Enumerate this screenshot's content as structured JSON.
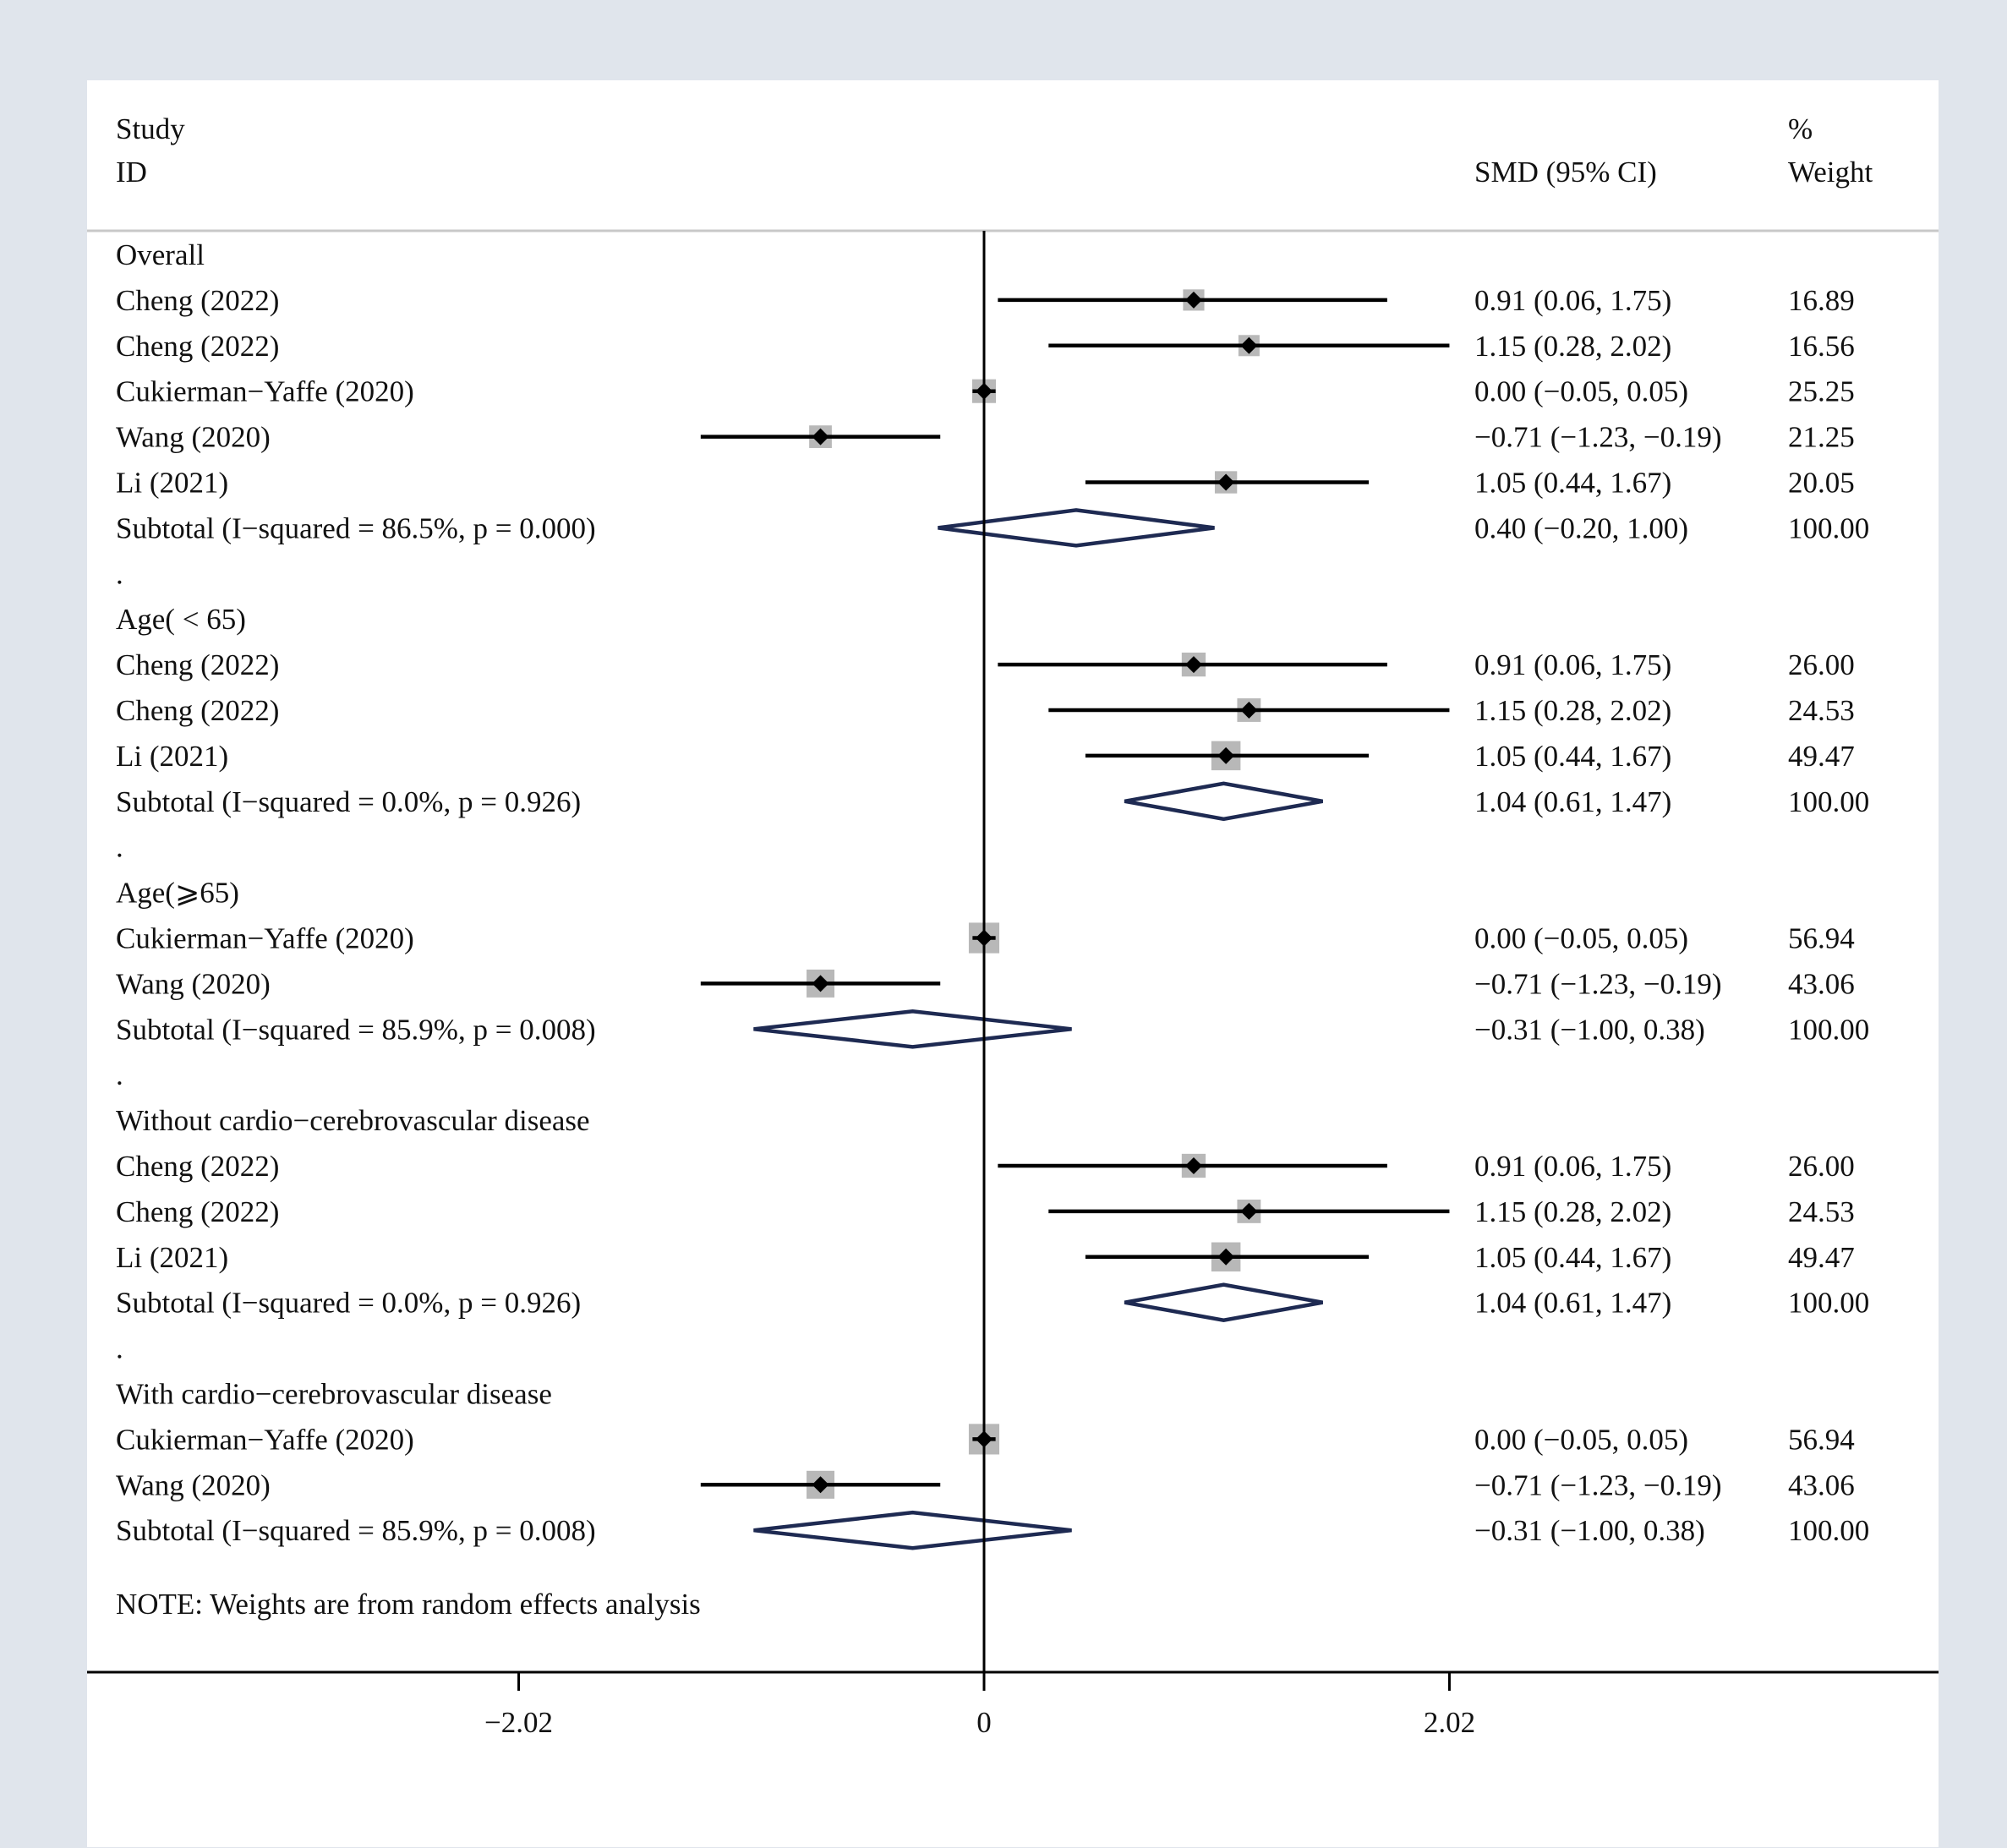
{
  "chart_data": {
    "type": "forest",
    "headers": {
      "study_line1": "Study",
      "study_line2": "ID",
      "effect": "SMD (95% CI)",
      "weight_line1": "%",
      "weight_line2": "Weight"
    },
    "x_ticks": [
      {
        "value": -2.02,
        "label": "−2.02"
      },
      {
        "value": 0,
        "label": "0"
      },
      {
        "value": 2.02,
        "label": "2.02"
      }
    ],
    "xlim": [
      -4.0,
      4.1
    ],
    "null_line": 0,
    "note": "NOTE: Weights are from random effects analysis",
    "rows": [
      {
        "kind": "group",
        "label": "Overall"
      },
      {
        "kind": "study",
        "label": "Cheng (2022)",
        "est": 0.91,
        "lo": 0.06,
        "hi": 1.75,
        "ci_text": "0.91 (0.06, 1.75)",
        "weight": 16.89,
        "weight_text": "16.89"
      },
      {
        "kind": "study",
        "label": "Cheng (2022)",
        "est": 1.15,
        "lo": 0.28,
        "hi": 2.02,
        "ci_text": "1.15 (0.28, 2.02)",
        "weight": 16.56,
        "weight_text": "16.56"
      },
      {
        "kind": "study",
        "label": "Cukierman−Yaffe (2020)",
        "est": 0.0,
        "lo": -0.05,
        "hi": 0.05,
        "ci_text": "0.00 (−0.05, 0.05)",
        "weight": 25.25,
        "weight_text": "25.25"
      },
      {
        "kind": "study",
        "label": "Wang (2020)",
        "est": -0.71,
        "lo": -1.23,
        "hi": -0.19,
        "ci_text": "−0.71 (−1.23, −0.19)",
        "weight": 21.25,
        "weight_text": "21.25"
      },
      {
        "kind": "study",
        "label": "Li (2021)",
        "est": 1.05,
        "lo": 0.44,
        "hi": 1.67,
        "ci_text": "1.05 (0.44, 1.67)",
        "weight": 20.05,
        "weight_text": "20.05"
      },
      {
        "kind": "subtotal",
        "label": "Subtotal  (I−squared = 86.5%, p = 0.000)",
        "est": 0.4,
        "lo": -0.2,
        "hi": 1.0,
        "ci_text": "0.40 (−0.20, 1.00)",
        "weight_text": "100.00"
      },
      {
        "kind": "dot",
        "label": "."
      },
      {
        "kind": "group",
        "label": "Age( < 65)"
      },
      {
        "kind": "study",
        "label": "Cheng (2022)",
        "est": 0.91,
        "lo": 0.06,
        "hi": 1.75,
        "ci_text": "0.91 (0.06, 1.75)",
        "weight": 26.0,
        "weight_text": "26.00"
      },
      {
        "kind": "study",
        "label": "Cheng (2022)",
        "est": 1.15,
        "lo": 0.28,
        "hi": 2.02,
        "ci_text": "1.15 (0.28, 2.02)",
        "weight": 24.53,
        "weight_text": "24.53"
      },
      {
        "kind": "study",
        "label": "Li (2021)",
        "est": 1.05,
        "lo": 0.44,
        "hi": 1.67,
        "ci_text": "1.05 (0.44, 1.67)",
        "weight": 49.47,
        "weight_text": "49.47"
      },
      {
        "kind": "subtotal",
        "label": "Subtotal  (I−squared = 0.0%, p = 0.926)",
        "est": 1.04,
        "lo": 0.61,
        "hi": 1.47,
        "ci_text": "1.04 (0.61, 1.47)",
        "weight_text": "100.00"
      },
      {
        "kind": "dot",
        "label": "."
      },
      {
        "kind": "group",
        "label": "Age(⩾65)"
      },
      {
        "kind": "study",
        "label": "Cukierman−Yaffe (2020)",
        "est": 0.0,
        "lo": -0.05,
        "hi": 0.05,
        "ci_text": "0.00 (−0.05, 0.05)",
        "weight": 56.94,
        "weight_text": "56.94"
      },
      {
        "kind": "study",
        "label": "Wang (2020)",
        "est": -0.71,
        "lo": -1.23,
        "hi": -0.19,
        "ci_text": "−0.71 (−1.23, −0.19)",
        "weight": 43.06,
        "weight_text": "43.06"
      },
      {
        "kind": "subtotal",
        "label": "Subtotal  (I−squared = 85.9%, p = 0.008)",
        "est": -0.31,
        "lo": -1.0,
        "hi": 0.38,
        "ci_text": "−0.31 (−1.00, 0.38)",
        "weight_text": "100.00"
      },
      {
        "kind": "dot",
        "label": "."
      },
      {
        "kind": "group",
        "label": "Without cardio−cerebrovascular disease"
      },
      {
        "kind": "study",
        "label": "Cheng (2022)",
        "est": 0.91,
        "lo": 0.06,
        "hi": 1.75,
        "ci_text": "0.91 (0.06, 1.75)",
        "weight": 26.0,
        "weight_text": "26.00"
      },
      {
        "kind": "study",
        "label": "Cheng (2022)",
        "est": 1.15,
        "lo": 0.28,
        "hi": 2.02,
        "ci_text": "1.15 (0.28, 2.02)",
        "weight": 24.53,
        "weight_text": "24.53"
      },
      {
        "kind": "study",
        "label": "Li (2021)",
        "est": 1.05,
        "lo": 0.44,
        "hi": 1.67,
        "ci_text": "1.05 (0.44, 1.67)",
        "weight": 49.47,
        "weight_text": "49.47"
      },
      {
        "kind": "subtotal",
        "label": "Subtotal  (I−squared = 0.0%, p = 0.926)",
        "est": 1.04,
        "lo": 0.61,
        "hi": 1.47,
        "ci_text": "1.04 (0.61, 1.47)",
        "weight_text": "100.00"
      },
      {
        "kind": "dot",
        "label": "."
      },
      {
        "kind": "group",
        "label": "With cardio−cerebrovascular disease"
      },
      {
        "kind": "study",
        "label": "Cukierman−Yaffe (2020)",
        "est": 0.0,
        "lo": -0.05,
        "hi": 0.05,
        "ci_text": "0.00 (−0.05, 0.05)",
        "weight": 56.94,
        "weight_text": "56.94"
      },
      {
        "kind": "study",
        "label": "Wang (2020)",
        "est": -0.71,
        "lo": -1.23,
        "hi": -0.19,
        "ci_text": "−0.71 (−1.23, −0.19)",
        "weight": 43.06,
        "weight_text": "43.06"
      },
      {
        "kind": "subtotal",
        "label": "Subtotal  (I−squared = 85.9%, p = 0.008)",
        "est": -0.31,
        "lo": -1.0,
        "hi": 0.38,
        "ci_text": "−0.31 (−1.00, 0.38)",
        "weight_text": "100.00"
      }
    ],
    "colors": {
      "ci_line": "#000000",
      "weight_box": "#b8b8b8",
      "point": "#000000",
      "diamond": "#1e2a52",
      "null_line": "#000000",
      "rule": "#c8c8c8",
      "axis": "#000000"
    }
  }
}
